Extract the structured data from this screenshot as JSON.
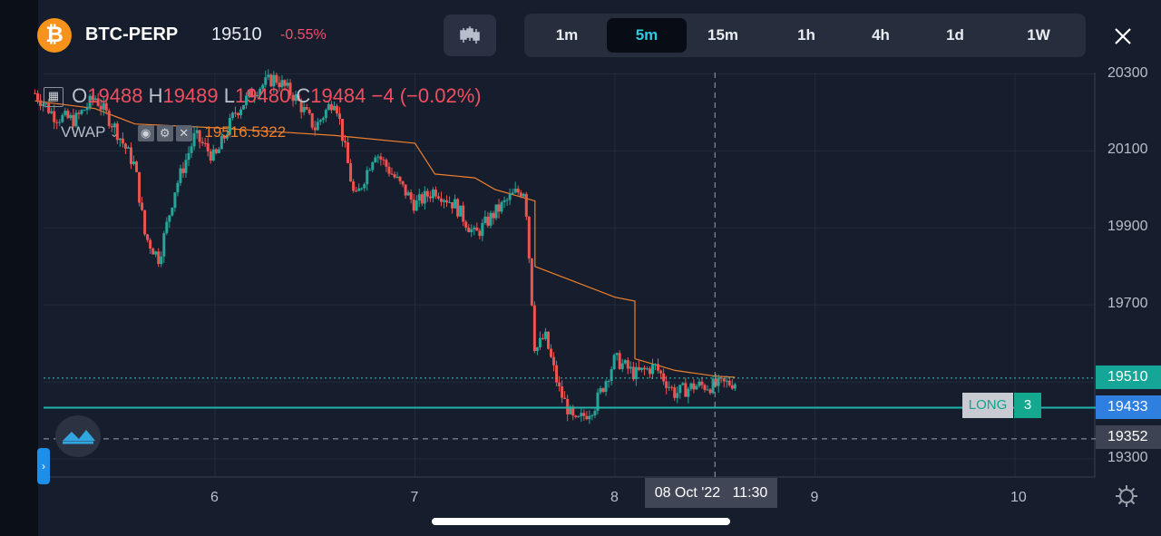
{
  "header": {
    "symbol": "BTC-PERP",
    "last_price": "19510",
    "change": "-0.55%",
    "coin_icon": "bitcoin-icon",
    "chart_type_icon": "candlestick-icon",
    "close_icon": "close-icon"
  },
  "timeframes": [
    {
      "label": "1m",
      "active": false
    },
    {
      "label": "5m",
      "active": true
    },
    {
      "label": "15m",
      "active": false
    },
    {
      "label": "1h",
      "active": false
    },
    {
      "label": "4h",
      "active": false
    },
    {
      "label": "1d",
      "active": false
    },
    {
      "label": "1W",
      "active": false
    }
  ],
  "legend": {
    "o_label": "O",
    "o": "19488",
    "h_label": "H",
    "h": "19489",
    "l_label": "L",
    "l": "19480",
    "c_label": "C",
    "c": "19484",
    "change": "−4 (−0.02%)"
  },
  "indicator": {
    "name": "VWAP",
    "value": "19516.5322"
  },
  "price_labels": {
    "current": "19510",
    "position": "19433",
    "crosshair": "19352"
  },
  "position": {
    "side": "LONG",
    "qty": "3"
  },
  "crosshair_label": "08 Oct '22   11:30",
  "colors": {
    "up": "#26a69a",
    "down": "#ef5350",
    "vwap": "#f0802d",
    "accent": "#2fc9e0",
    "position_line": "#1fb5ad"
  },
  "chart_data": {
    "type": "candlestick",
    "title": "BTC-PERP 5m",
    "x_axis_ticks": [
      "6",
      "7",
      "8",
      "9",
      "10"
    ],
    "y_axis_ticks": [
      20300,
      20100,
      19900,
      19700,
      19500,
      19300
    ],
    "ylim": [
      19250,
      20340
    ],
    "price_path": [
      [
        5.1,
        20250
      ],
      [
        5.2,
        20190
      ],
      [
        5.3,
        20180
      ],
      [
        5.4,
        20240
      ],
      [
        5.5,
        20160
      ],
      [
        5.6,
        20060
      ],
      [
        5.65,
        19880
      ],
      [
        5.72,
        19820
      ],
      [
        5.8,
        20000
      ],
      [
        5.9,
        20140
      ],
      [
        6.0,
        20080
      ],
      [
        6.1,
        20200
      ],
      [
        6.2,
        20260
      ],
      [
        6.3,
        20290
      ],
      [
        6.4,
        20240
      ],
      [
        6.5,
        20160
      ],
      [
        6.6,
        20240
      ],
      [
        6.7,
        19970
      ],
      [
        6.8,
        20100
      ],
      [
        6.9,
        20030
      ],
      [
        7.0,
        19960
      ],
      [
        7.1,
        20000
      ],
      [
        7.2,
        19960
      ],
      [
        7.3,
        19880
      ],
      [
        7.4,
        19940
      ],
      [
        7.5,
        19990
      ],
      [
        7.55,
        20000
      ],
      [
        7.6,
        19580
      ],
      [
        7.65,
        19620
      ],
      [
        7.72,
        19480
      ],
      [
        7.8,
        19390
      ],
      [
        7.9,
        19440
      ],
      [
        8.0,
        19560
      ],
      [
        8.1,
        19520
      ],
      [
        8.2,
        19540
      ],
      [
        8.3,
        19470
      ],
      [
        8.4,
        19490
      ],
      [
        8.5,
        19490
      ],
      [
        8.6,
        19500
      ]
    ],
    "vwap_path": [
      [
        5.1,
        20230
      ],
      [
        5.4,
        20210
      ],
      [
        5.6,
        20170
      ],
      [
        6.0,
        20160
      ],
      [
        6.3,
        20150
      ],
      [
        6.6,
        20140
      ],
      [
        7.0,
        20120
      ],
      [
        7.1,
        20040
      ],
      [
        7.3,
        20030
      ],
      [
        7.4,
        20000
      ],
      [
        7.6,
        19970
      ],
      [
        7.6,
        19800
      ],
      [
        7.8,
        19760
      ],
      [
        8.0,
        19720
      ],
      [
        8.1,
        19710
      ],
      [
        8.1,
        19560
      ],
      [
        8.3,
        19530
      ],
      [
        8.5,
        19515
      ],
      [
        8.6,
        19512
      ]
    ],
    "current_price": 19510,
    "position_entry": 19433,
    "crosshair_price": 19352,
    "crosshair_x": 8.5
  }
}
